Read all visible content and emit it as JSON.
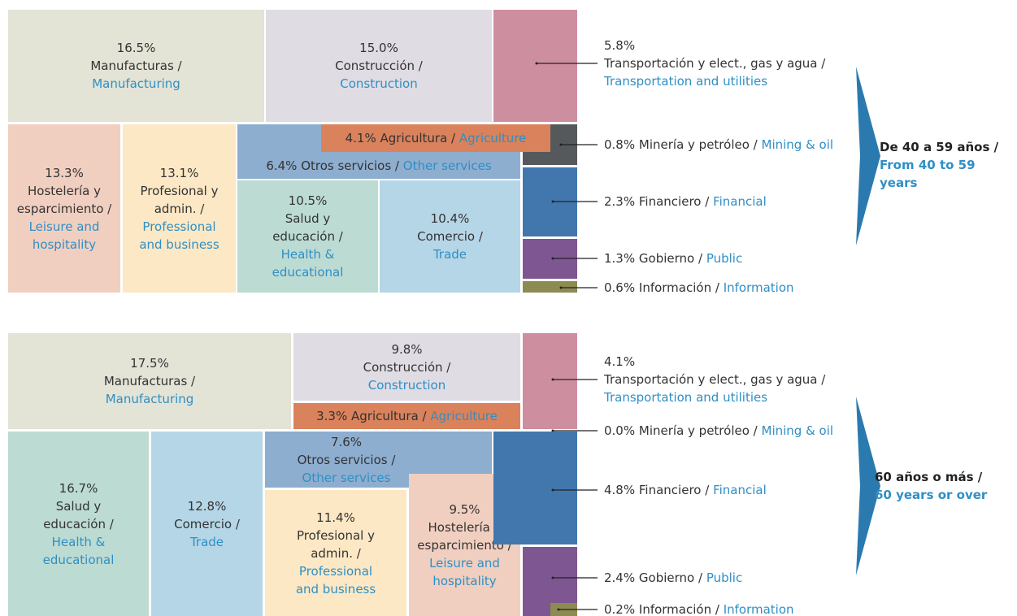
{
  "chart_data": [
    {
      "type": "treemap",
      "title": "De 40 a 59 años /",
      "subtitle": "From 40 to 59 years",
      "categories": [
        "Manufacturas /",
        "Construcción /",
        "Transportación y elect., gas y agua /",
        "Agricultura /",
        "Otros servicios /",
        "Hostelería y esparcimiento /",
        "Profesional y admin. /",
        "Salud y educación /",
        "Comercio /",
        "Minería y petróleo /",
        "Financiero /",
        "Gobierno /",
        "Información /"
      ],
      "categories_en": [
        "Manufacturing",
        "Construction",
        "Transportation and utilities",
        "Agriculture",
        "Other services",
        "Leisure and hospitality",
        "Professional and business",
        "Health & educational",
        "Trade",
        "Mining & oil",
        "Financial",
        "Public",
        "Information"
      ],
      "values": [
        16.5,
        15.0,
        5.8,
        4.1,
        6.4,
        13.3,
        13.1,
        10.5,
        10.4,
        0.8,
        2.3,
        1.3,
        0.6
      ],
      "value_labels": [
        "16.5%",
        "15.0%",
        "5.8%",
        "4.1%",
        "6.4%",
        "13.3%",
        "13.1%",
        "10.5%",
        "10.4%",
        "0.8%",
        "2.3%",
        "1.3%",
        "0.6%"
      ],
      "colors": [
        "#e3e3d6",
        "#e0dce3",
        "#cd8fa0",
        "#d9825c",
        "#8eaed0",
        "#f1cfc0",
        "#fde8c5",
        "#bcdbd3",
        "#b5d6e6",
        "#55595b",
        "#4277ae",
        "#7e5691",
        "#8c8b51"
      ]
    },
    {
      "type": "treemap",
      "title": "60 años o más /",
      "subtitle": "60 years or over",
      "categories": [
        "Manufacturas /",
        "Construcción /",
        "Transportación y elect., gas y agua /",
        "Agricultura /",
        "Otros servicios /",
        "Hostelería y esparcimiento /",
        "Profesional y admin. /",
        "Salud y educación /",
        "Comercio /",
        "Minería y petróleo /",
        "Financiero /",
        "Gobierno /",
        "Información /"
      ],
      "categories_en": [
        "Manufacturing",
        "Construction",
        "Transportation and utilities",
        "Agriculture",
        "Other services",
        "Leisure and hospitality",
        "Professional and business",
        "Health & educational",
        "Trade",
        "Mining & oil",
        "Financial",
        "Public",
        "Information"
      ],
      "values": [
        17.5,
        9.8,
        4.1,
        3.3,
        7.6,
        9.5,
        11.4,
        16.7,
        12.8,
        0.0,
        4.8,
        2.4,
        0.2
      ],
      "value_labels": [
        "17.5%",
        "9.8%",
        "4.1%",
        "3.3%",
        "7.6%",
        "9.5%",
        "11.4%",
        "16.7%",
        "12.8%",
        "0.0%",
        "4.8%",
        "2.4%",
        "0.2%"
      ],
      "colors": [
        "#e3e3d6",
        "#e0dce3",
        "#cd8fa0",
        "#d9825c",
        "#8eaed0",
        "#f1cfc0",
        "#fde8c5",
        "#bcdbd3",
        "#b5d6e6",
        "#55595b",
        "#4277ae",
        "#7e5691",
        "#8c8b51"
      ]
    }
  ]
}
